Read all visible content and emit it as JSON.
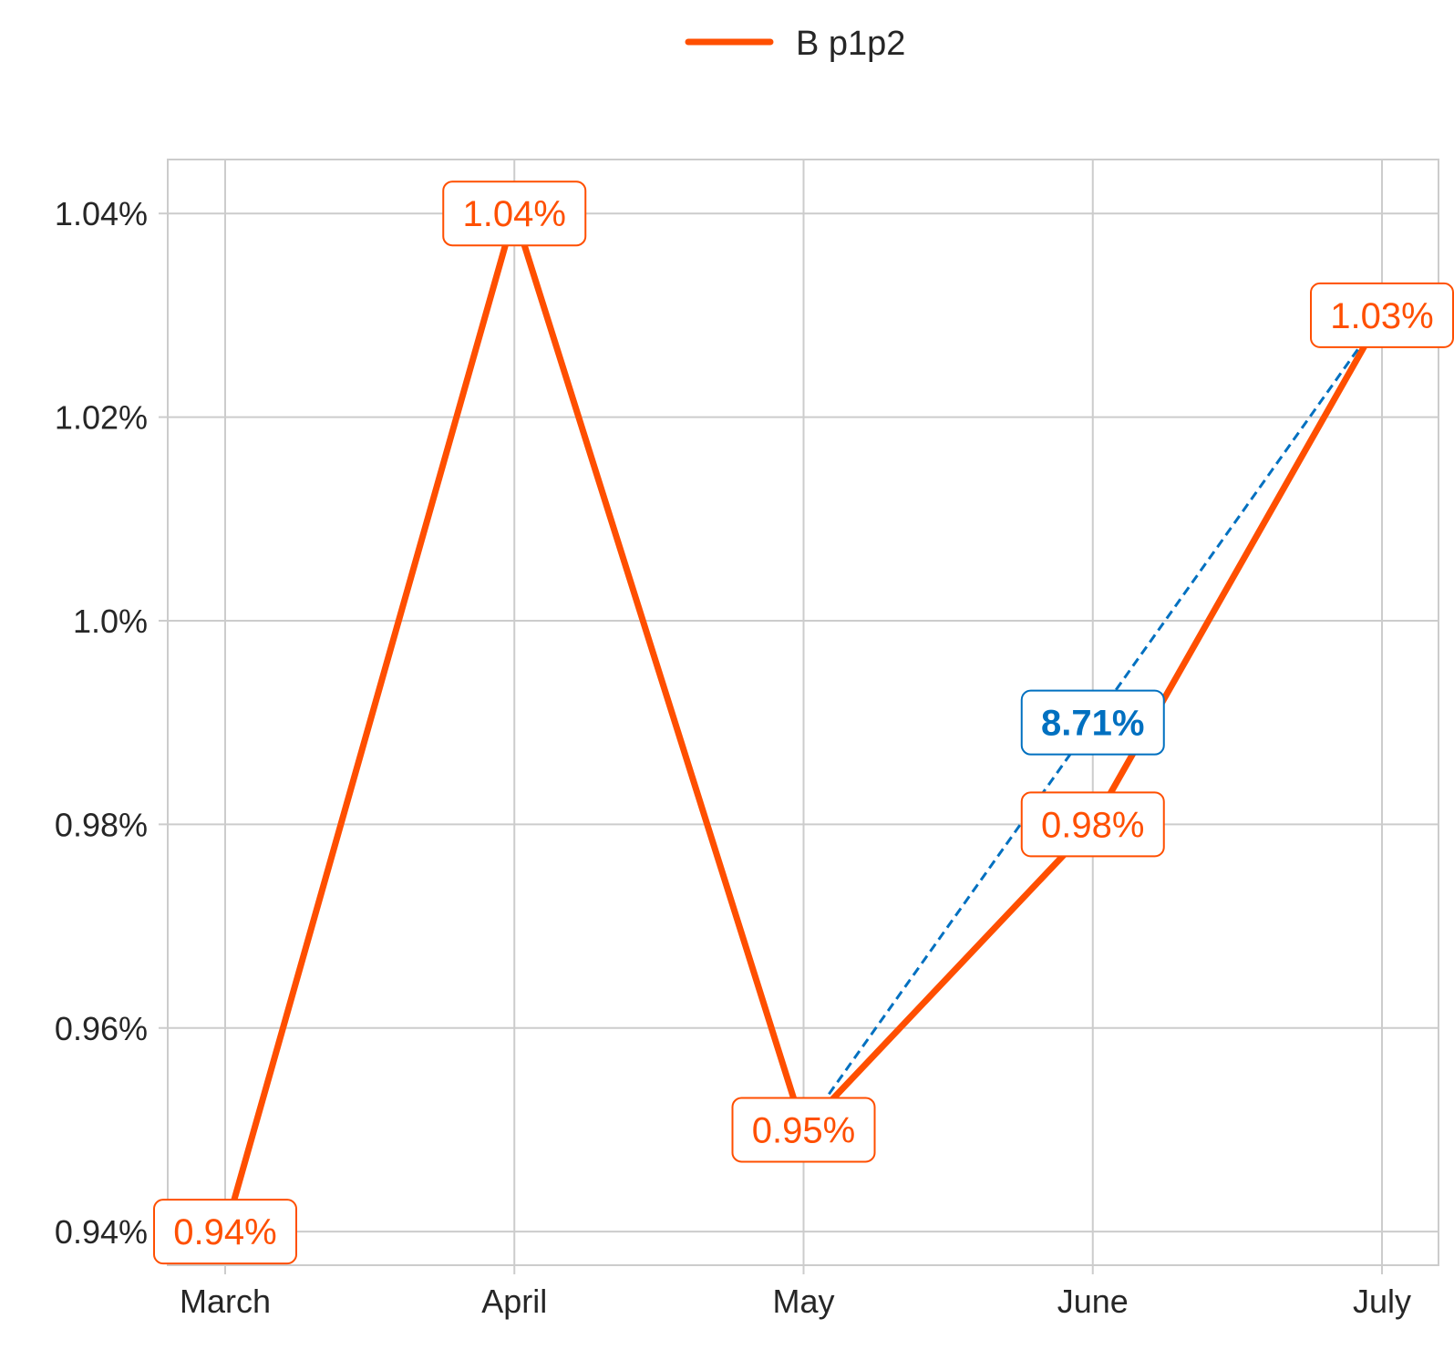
{
  "chart_data": {
    "type": "line",
    "categories": [
      "March",
      "April",
      "May",
      "June",
      "July"
    ],
    "series": [
      {
        "name": "B p1p2",
        "values": [
          0.94,
          1.04,
          0.95,
          0.98,
          1.03
        ],
        "labels": [
          "0.94%",
          "1.04%",
          "0.95%",
          "0.98%",
          "1.03%"
        ],
        "color": "#ff4f00"
      }
    ],
    "annotation": {
      "text": "8.71%",
      "from_category": "May",
      "to_category": "July",
      "anchor_category": "June",
      "color": "#0070c0",
      "style": "dashed"
    },
    "y_ticks": [
      0.94,
      0.96,
      0.98,
      1.0,
      1.02,
      1.04
    ],
    "y_tick_labels": [
      "0.94%",
      "0.96%",
      "0.98%",
      "1.0%",
      "1.02%",
      "1.04%"
    ],
    "ylim": [
      0.9367,
      1.0453
    ],
    "grid": true,
    "legend_position": "top-center",
    "title": "",
    "xlabel": "",
    "ylabel": ""
  }
}
